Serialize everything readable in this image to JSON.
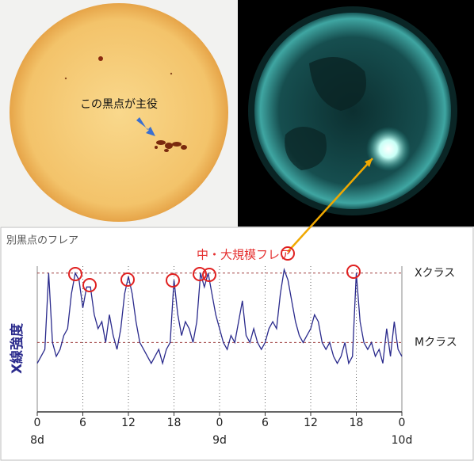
{
  "images": {
    "sunspot_caption": "この黒点が主役"
  },
  "chart_data": {
    "type": "line",
    "y_label": "X線強度",
    "annotations": [
      "中・大規模フレア",
      "別黒点のフレア"
    ],
    "color": "#2a2a8c",
    "x": [
      0,
      0.5,
      1,
      1.5,
      2,
      2.5,
      3,
      3.5,
      4,
      4.5,
      5,
      5.5,
      6,
      6.5,
      7,
      7.5,
      8,
      8.5,
      9,
      9.5,
      10,
      10.5,
      11,
      11.5,
      12,
      12.5,
      13,
      13.5,
      14,
      14.5,
      15,
      15.5,
      16,
      16.5,
      17,
      17.5,
      18,
      18.5,
      19,
      19.5,
      20,
      20.5,
      21,
      21.5,
      22,
      22.5,
      23,
      23.5,
      24,
      24.5,
      25,
      25.5,
      26,
      26.5,
      27,
      27.5,
      28,
      28.5,
      29,
      29.5,
      30,
      30.5,
      31,
      31.5,
      32,
      32.5,
      33,
      33.5,
      34,
      34.5,
      35,
      35.5,
      36,
      36.5,
      37,
      37.5,
      38,
      38.5,
      39,
      39.5,
      40,
      40.5,
      41,
      41.5,
      42,
      42.5,
      43,
      43.5,
      44,
      44.5,
      45,
      45.5,
      46,
      46.5,
      47,
      47.5,
      48
    ],
    "values": [
      -5.3,
      -5.2,
      -5.1,
      -4.0,
      -5.0,
      -5.2,
      -5.1,
      -4.9,
      -4.8,
      -4.3,
      -4.0,
      -4.1,
      -4.5,
      -4.2,
      -4.2,
      -4.6,
      -4.8,
      -4.7,
      -5.0,
      -4.6,
      -4.9,
      -5.1,
      -4.8,
      -4.3,
      -4.05,
      -4.3,
      -4.7,
      -5.0,
      -5.1,
      -5.2,
      -5.3,
      -5.2,
      -5.1,
      -5.3,
      -5.1,
      -5.0,
      -4.1,
      -4.6,
      -4.9,
      -4.7,
      -4.8,
      -5.0,
      -4.7,
      -4.0,
      -4.2,
      -4.0,
      -4.3,
      -4.6,
      -4.8,
      -5.0,
      -5.1,
      -4.9,
      -5.0,
      -4.7,
      -4.4,
      -4.9,
      -5.0,
      -4.8,
      -5.0,
      -5.1,
      -5.0,
      -4.8,
      -4.7,
      -4.8,
      -4.3,
      -3.95,
      -4.1,
      -4.4,
      -4.7,
      -4.9,
      -5.0,
      -4.9,
      -4.8,
      -4.6,
      -4.7,
      -5.0,
      -5.1,
      -5.0,
      -5.2,
      -5.3,
      -5.2,
      -5.0,
      -5.3,
      -5.2,
      -4.0,
      -4.7,
      -5.0,
      -5.1,
      -5.0,
      -5.2,
      -5.1,
      -5.3,
      -4.8,
      -5.2,
      -4.7,
      -5.1,
      -5.2
    ],
    "xlim": [
      0,
      48
    ],
    "xticks": [
      0,
      6,
      12,
      18,
      {
        "value": 24,
        "label": "0"
      },
      {
        "value": 30,
        "label": "6"
      },
      {
        "value": 36,
        "label": "12"
      },
      {
        "value": 42,
        "label": "18"
      },
      {
        "value": 48,
        "label": "0"
      }
    ],
    "date_labels": [
      {
        "value": 0,
        "label": "8d"
      },
      {
        "value": 24,
        "label": "9d"
      },
      {
        "value": 48,
        "label": "10d"
      }
    ],
    "ylim": [
      -6,
      -3.9
    ],
    "yticks": [
      {
        "value": -4,
        "label": "Xクラス"
      },
      {
        "value": -5,
        "label": "Mクラス"
      }
    ],
    "grid": true
  }
}
